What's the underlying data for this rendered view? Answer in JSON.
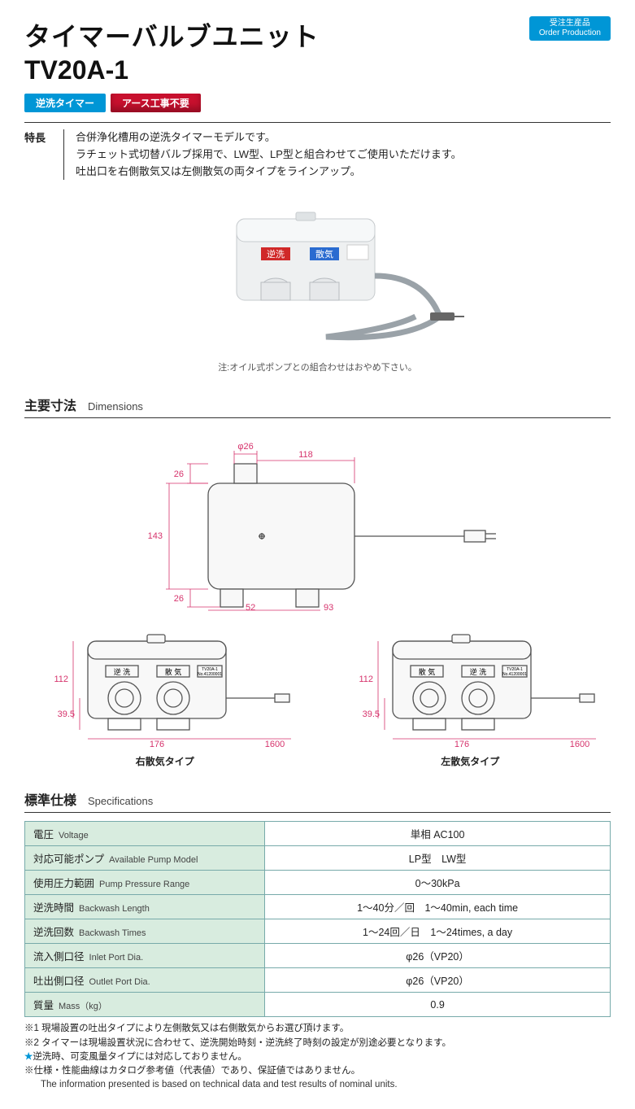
{
  "header": {
    "title_jp": "タイマーバルブユニット",
    "model": "TV20A-1",
    "order_badge_jp": "受注生産品",
    "order_badge_en": "Order Production"
  },
  "tags": {
    "blue": "逆洗タイマー",
    "red": "アース工事不要"
  },
  "features": {
    "label": "特長",
    "line1": "合併浄化槽用の逆洗タイマーモデルです。",
    "line2": "ラチェット式切替バルブ採用で、LW型、LP型と組合わせてご使用いただけます。",
    "line3": "吐出口を右側散気又は左側散気の両タイプをラインアップ。"
  },
  "photo": {
    "label_left": "逆洗",
    "label_right": "散気",
    "note": "注:オイル式ポンプとの組合わせはおやめ下さい。"
  },
  "dimensions": {
    "heading_jp": "主要寸法",
    "heading_en": "Dimensions",
    "top_view": {
      "phi26": "φ26",
      "d118": "118",
      "d26a": "26",
      "d26b": "26",
      "d143": "143",
      "d52": "52",
      "d93": "93"
    },
    "front_common": {
      "d112": "112",
      "d39_5": "39.5",
      "d176": "176",
      "d1600": "1600",
      "model_label": "TV20A-1",
      "serial_label": "No.41200001",
      "label_gyaku": "逆 洗",
      "label_sanki": "散 気"
    },
    "caption_right": "右散気タイプ",
    "caption_left": "左散気タイプ"
  },
  "specs": {
    "heading_jp": "標準仕様",
    "heading_en": "Specifications",
    "rows": [
      {
        "label_jp": "電圧",
        "label_en": "Voltage",
        "value": "単相  AC100"
      },
      {
        "label_jp": "対応可能ポンプ",
        "label_en": "Available  Pump Model",
        "value": "LP型　LW型"
      },
      {
        "label_jp": "使用圧力範囲",
        "label_en": "Pump Pressure Range",
        "value": "0～30kPa"
      },
      {
        "label_jp": "逆洗時間",
        "label_en": "Backwash Length",
        "value": "1～40分／回　1～40min, each time"
      },
      {
        "label_jp": "逆洗回数",
        "label_en": "Backwash Times",
        "value": "1～24回／日　1～24times, a day"
      },
      {
        "label_jp": "流入側口径",
        "label_en": "Inlet Port Dia.",
        "value": "φ26（VP20）"
      },
      {
        "label_jp": "吐出側口径",
        "label_en": "Outlet Port Dia.",
        "value": "φ26（VP20）"
      },
      {
        "label_jp": "質量",
        "label_en": "Mass（kg）",
        "value": "0.9"
      }
    ]
  },
  "notes": {
    "n1": "※1 現場設置の吐出タイプにより左側散気又は右側散気からお選び頂けます。",
    "n2": "※2 タイマーは現場設置状況に合わせて、逆洗開始時刻・逆洗終了時刻の設定が別途必要となります。",
    "n3": "逆洗時、可変風量タイプには対応しておりません。",
    "n4": "※仕様・性能曲線はカタログ参考値（代表値）であり、保証値ではありません。",
    "n5": "The information presented is based on technical data and test results of nominal units."
  },
  "colors": {
    "accent_blue": "#0096d6",
    "accent_red": "#c8102e",
    "dim_pink": "#d6336c",
    "table_green": "#d8ecdf",
    "table_border": "#7aa9a0"
  }
}
